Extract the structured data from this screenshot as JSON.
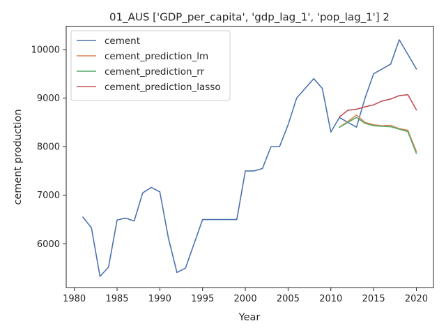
{
  "chart_data": {
    "type": "line",
    "title": "01_AUS ['GDP_per_capita', 'gdp_lag_1', 'pop_lag_1'] 2",
    "xlabel": "Year",
    "ylabel": "cement production",
    "xlim": [
      1979.05,
      2022.0
    ],
    "ylim": [
      5100,
      10480
    ],
    "xticks": [
      1980,
      1985,
      1990,
      1995,
      2000,
      2005,
      2010,
      2015,
      2020
    ],
    "yticks": [
      6000,
      7000,
      8000,
      9000,
      10000
    ],
    "grid": false,
    "legend_position": "top-left",
    "series": [
      {
        "name": "cement",
        "color": "#4c72b0",
        "x": [
          1981,
          1982,
          1983,
          1984,
          1985,
          1986,
          1987,
          1988,
          1989,
          1990,
          1991,
          1992,
          1993,
          1994,
          1995,
          1996,
          1997,
          1998,
          1999,
          2000,
          2001,
          2002,
          2003,
          2004,
          2005,
          2006,
          2007,
          2008,
          2009,
          2010,
          2011,
          2012,
          2013,
          2014,
          2015,
          2016,
          2017,
          2018,
          2019,
          2020
        ],
        "values": [
          6550,
          6330,
          5330,
          5520,
          6490,
          6530,
          6470,
          7050,
          7160,
          7070,
          6120,
          5410,
          5500,
          6000,
          6500,
          6500,
          6500,
          6500,
          6500,
          7500,
          7500,
          7550,
          8000,
          8000,
          8450,
          9000,
          9200,
          9400,
          9200,
          8300,
          8600,
          8500,
          8400,
          9000,
          9500,
          9600,
          9700,
          10200,
          9900,
          9600
        ]
      },
      {
        "name": "cement_prediction_lm",
        "color": "#dd8452",
        "x": [
          2011,
          2012,
          2013,
          2014,
          2015,
          2016,
          2017,
          2018,
          2019,
          2020
        ],
        "values": [
          8400,
          8520,
          8650,
          8500,
          8450,
          8430,
          8440,
          8370,
          8340,
          7900
        ]
      },
      {
        "name": "cement_prediction_rr",
        "color": "#55a868",
        "x": [
          2011,
          2012,
          2013,
          2014,
          2015,
          2016,
          2017,
          2018,
          2019,
          2020
        ],
        "values": [
          8400,
          8500,
          8600,
          8480,
          8430,
          8420,
          8410,
          8360,
          8310,
          7860
        ]
      },
      {
        "name": "cement_prediction_lasso",
        "color": "#c44e52",
        "x": [
          2011,
          2012,
          2013,
          2014,
          2015,
          2016,
          2017,
          2018,
          2019,
          2020
        ],
        "values": [
          8610,
          8750,
          8770,
          8820,
          8860,
          8940,
          8980,
          9050,
          9070,
          8760
        ]
      }
    ]
  }
}
